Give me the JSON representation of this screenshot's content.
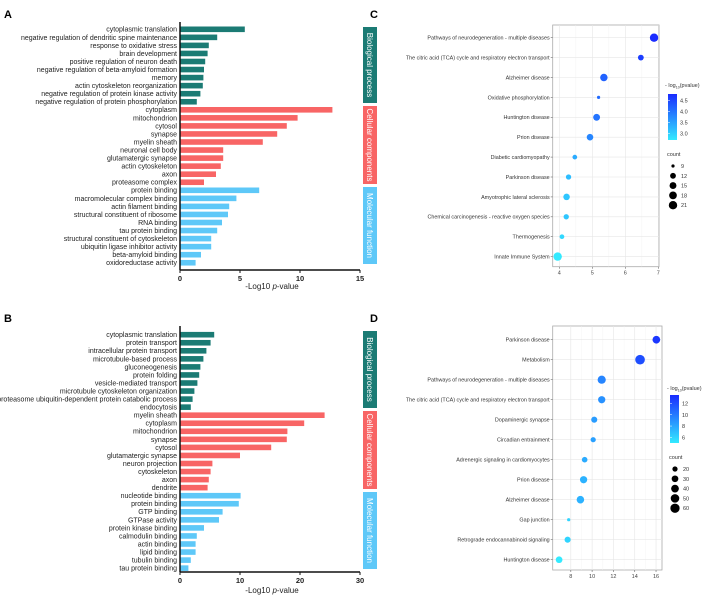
{
  "chart_data": [
    {
      "panel": "A",
      "type": "bar",
      "orientation": "horizontal",
      "xlabel_prefix": "-Log10 ",
      "xlabel_italic": "p",
      "xlabel_suffix": "-value",
      "xlim": [
        0,
        15
      ],
      "xticks": [
        0,
        5,
        10,
        15
      ],
      "groups": [
        {
          "name": "Biological process",
          "color": "#1b7b74",
          "items": [
            {
              "label": "cytoplasmic translation",
              "value": 5.4
            },
            {
              "label": "negative regulation of dendritic spine maintenance",
              "value": 3.1
            },
            {
              "label": "response to oxidative stress",
              "value": 2.4
            },
            {
              "label": "brain development",
              "value": 2.3
            },
            {
              "label": "positive regulation of neuron death",
              "value": 2.1
            },
            {
              "label": "negative regulation of beta-amyloid formation",
              "value": 2.0
            },
            {
              "label": "memory",
              "value": 1.95
            },
            {
              "label": "actin cytoskeleton reorganization",
              "value": 1.9
            },
            {
              "label": "negative regulation of protein kinase activity",
              "value": 1.7
            },
            {
              "label": "negative regulation of protein phosphorylation",
              "value": 1.4
            }
          ]
        },
        {
          "name": "Cellular components",
          "color": "#f86565",
          "items": [
            {
              "label": "cytoplasm",
              "value": 12.7
            },
            {
              "label": "mitochondrion",
              "value": 9.8
            },
            {
              "label": "cytosol",
              "value": 8.9
            },
            {
              "label": "synapse",
              "value": 8.1
            },
            {
              "label": "myelin sheath",
              "value": 6.9
            },
            {
              "label": "neuronal cell body",
              "value": 3.6
            },
            {
              "label": "glutamatergic synapse",
              "value": 3.6
            },
            {
              "label": "actin cytoskeleton",
              "value": 3.4
            },
            {
              "label": "axon",
              "value": 3.0
            },
            {
              "label": "proteasome complex",
              "value": 2.0
            }
          ]
        },
        {
          "name": "Molecular function",
          "color": "#5ec8f8",
          "items": [
            {
              "label": "protein binding",
              "value": 6.6
            },
            {
              "label": "macromolecular complex binding",
              "value": 4.7
            },
            {
              "label": "actin filament binding",
              "value": 4.1
            },
            {
              "label": "structural constituent of ribosome",
              "value": 4.0
            },
            {
              "label": "RNA binding",
              "value": 3.5
            },
            {
              "label": "tau protein binding",
              "value": 3.1
            },
            {
              "label": "structural constituent of cytoskeleton",
              "value": 2.6
            },
            {
              "label": "ubiquitin ligase inhibitor activity",
              "value": 2.6
            },
            {
              "label": "beta-amyloid binding",
              "value": 1.75
            },
            {
              "label": "oxidoreductase activity",
              "value": 1.3
            }
          ]
        }
      ]
    },
    {
      "panel": "B",
      "type": "bar",
      "orientation": "horizontal",
      "xlabel_prefix": "-Log10 ",
      "xlabel_italic": "p",
      "xlabel_suffix": "-value",
      "xlim": [
        0,
        30
      ],
      "xticks": [
        0,
        10,
        20,
        30
      ],
      "groups": [
        {
          "name": "Biological process",
          "color": "#1b7b74",
          "items": [
            {
              "label": "cytoplasmic translation",
              "value": 5.7
            },
            {
              "label": "protein transport",
              "value": 5.1
            },
            {
              "label": "intracellular protein transport",
              "value": 4.4
            },
            {
              "label": "microtubule-based process",
              "value": 3.9
            },
            {
              "label": "gluconeogenesis",
              "value": 3.4
            },
            {
              "label": "protein folding",
              "value": 3.2
            },
            {
              "label": "vesicle-mediated transport",
              "value": 2.9
            },
            {
              "label": "microtubule cytoskeleton organization",
              "value": 2.4
            },
            {
              "label": "proteasome ubiquitin-dependent protein catabolic process",
              "value": 2.1
            },
            {
              "label": "endocytosis",
              "value": 1.8
            }
          ]
        },
        {
          "name": "Cellular components",
          "color": "#f86565",
          "items": [
            {
              "label": "myelin sheath",
              "value": 24.1
            },
            {
              "label": "cytoplasm",
              "value": 20.7
            },
            {
              "label": "mitochondrion",
              "value": 17.9
            },
            {
              "label": "synapse",
              "value": 17.8
            },
            {
              "label": "cytosol",
              "value": 15.2
            },
            {
              "label": "glutamatergic synapse",
              "value": 10.0
            },
            {
              "label": "neuron projection",
              "value": 5.4
            },
            {
              "label": "cytoskeleton",
              "value": 5.1
            },
            {
              "label": "axon",
              "value": 4.8
            },
            {
              "label": "dendrite",
              "value": 4.6
            }
          ]
        },
        {
          "name": "Molecular function",
          "color": "#5ec8f8",
          "items": [
            {
              "label": "nucleotide binding",
              "value": 10.1
            },
            {
              "label": "protein binding",
              "value": 9.8
            },
            {
              "label": "GTP binding",
              "value": 7.1
            },
            {
              "label": "GTPase activity",
              "value": 6.5
            },
            {
              "label": "protein kinase binding",
              "value": 4.0
            },
            {
              "label": "calmodulin binding",
              "value": 2.8
            },
            {
              "label": "actin binding",
              "value": 2.6
            },
            {
              "label": "lipid binding",
              "value": 2.6
            },
            {
              "label": "tubulin binding",
              "value": 1.8
            },
            {
              "label": "tau protein binding",
              "value": 1.4
            }
          ]
        }
      ]
    },
    {
      "panel": "C",
      "type": "scatter",
      "subtype": "bubble",
      "xlim": [
        3.8,
        7.02
      ],
      "xticks": [
        4,
        5,
        6,
        7
      ],
      "color_title_prefix": "- log",
      "color_title_sub": "10",
      "color_title_suffix": "(pvalue)",
      "color_range": [
        2.7,
        4.8
      ],
      "color_ticks": [
        "4.5",
        "4.0",
        "3.5",
        "3.0"
      ],
      "color_tick_values": [
        4.5,
        4.0,
        3.5,
        3.0
      ],
      "color_low": "#33eaff",
      "color_high": "#1a2cff",
      "size_title": "count",
      "size_ticks": [
        "9",
        "12",
        "15",
        "18",
        "21"
      ],
      "size_tick_values": [
        9,
        12,
        15,
        18,
        21
      ],
      "size_range": [
        9,
        21
      ],
      "points": [
        {
          "label": "Pathways of neurodegeneration -  multiple diseases",
          "x": 6.87,
          "count": 21,
          "pval": 4.8
        },
        {
          "label": "The citric acid (TCA) cycle and respiratory electron transport",
          "x": 6.47,
          "count": 12,
          "pval": 4.6
        },
        {
          "label": "Alzheimer disease",
          "x": 5.35,
          "count": 17,
          "pval": 4.2
        },
        {
          "label": "Oxidative phosphorylation",
          "x": 5.19,
          "count": 9,
          "pval": 4.1
        },
        {
          "label": "Huntington disease",
          "x": 5.13,
          "count": 15,
          "pval": 4.0
        },
        {
          "label": "Prion disease",
          "x": 4.93,
          "count": 14,
          "pval": 3.8
        },
        {
          "label": "Diabetic cardiomyopathy",
          "x": 4.47,
          "count": 10,
          "pval": 3.4
        },
        {
          "label": "Parkinson disease",
          "x": 4.28,
          "count": 11,
          "pval": 3.2
        },
        {
          "label": "Amyotrophic lateral sclerosis",
          "x": 4.22,
          "count": 14,
          "pval": 3.1
        },
        {
          "label": "Chemical carcinogenesis -  reactive oxygen species",
          "x": 4.21,
          "count": 11,
          "pval": 3.1
        },
        {
          "label": "Thermogenesis",
          "x": 4.08,
          "count": 10,
          "pval": 2.9
        },
        {
          "label": "Innate Immune System",
          "x": 3.95,
          "count": 21,
          "pval": 2.7
        }
      ]
    },
    {
      "panel": "D",
      "type": "scatter",
      "subtype": "bubble",
      "xlim": [
        6.3,
        16.56
      ],
      "xticks": [
        8,
        10,
        12,
        14,
        16
      ],
      "color_title_prefix": "- log",
      "color_title_sub": "10",
      "color_title_suffix": "(pvalue)",
      "color_range": [
        5,
        13.5
      ],
      "color_ticks": [
        "12",
        "10",
        "8",
        "6"
      ],
      "color_tick_values": [
        12,
        10,
        8,
        6
      ],
      "color_low": "#33eaff",
      "color_high": "#1a2cff",
      "size_title": "count",
      "size_ticks": [
        "20",
        "30",
        "40",
        "50",
        "60"
      ],
      "size_tick_values": [
        20,
        30,
        40,
        50,
        60
      ],
      "size_range": [
        15,
        65
      ],
      "points": [
        {
          "label": "Parkinson disease",
          "x": 16.03,
          "count": 40,
          "pval": 13
        },
        {
          "label": "Metabolism",
          "x": 14.5,
          "count": 65,
          "pval": 12
        },
        {
          "label": "Pathways of neurodegeneration -  multiple diseases",
          "x": 10.9,
          "count": 45,
          "pval": 9.5
        },
        {
          "label": "The citric acid (TCA) cycle and respiratory electron transport",
          "x": 10.9,
          "count": 35,
          "pval": 9
        },
        {
          "label": "Dopaminergic synapse",
          "x": 10.2,
          "count": 25,
          "pval": 8.5
        },
        {
          "label": "Circadian entrainment",
          "x": 10.1,
          "count": 20,
          "pval": 8.3
        },
        {
          "label": "Adrenergic signaling in cardiomyocytes",
          "x": 9.3,
          "count": 22,
          "pval": 7.8
        },
        {
          "label": "Prion disease",
          "x": 9.2,
          "count": 35,
          "pval": 7.5
        },
        {
          "label": "Alzheimer disease",
          "x": 8.9,
          "count": 38,
          "pval": 7.5
        },
        {
          "label": "Gap junction",
          "x": 7.8,
          "count": 15,
          "pval": 6
        },
        {
          "label": "Retrograde endocannabinoid signaling",
          "x": 7.7,
          "count": 25,
          "pval": 6
        },
        {
          "label": "Huntington disease",
          "x": 6.9,
          "count": 30,
          "pval": 5
        }
      ]
    }
  ]
}
